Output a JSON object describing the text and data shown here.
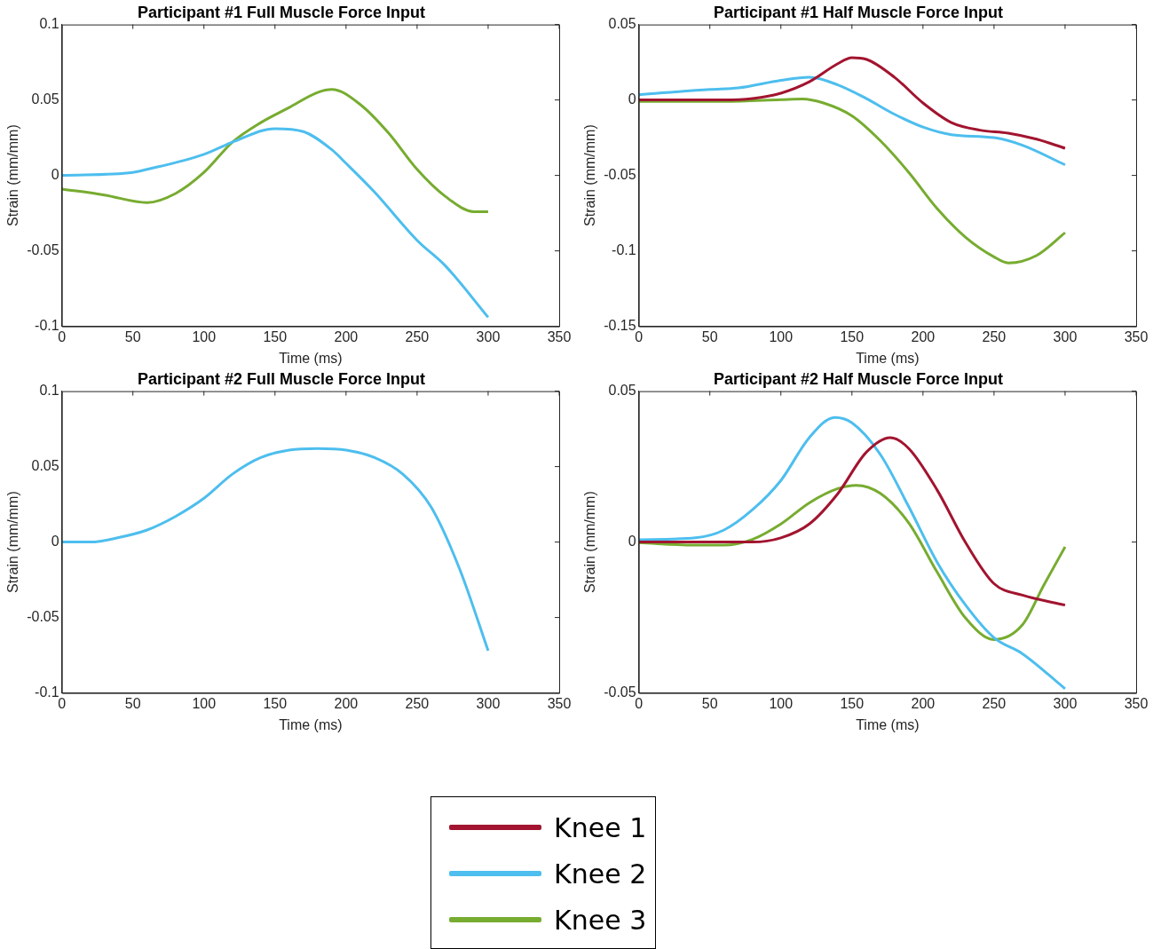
{
  "chart_data": [
    {
      "type": "line",
      "title": "Participant #1 Full Muscle Force Input",
      "xlabel": "Time (ms)",
      "ylabel": "Strain (mm/mm)",
      "xlim": [
        0,
        350
      ],
      "xticks": [
        0,
        50,
        100,
        150,
        200,
        250,
        300,
        350
      ],
      "ylim": [
        -0.1,
        0.1
      ],
      "yticks": [
        -0.1,
        -0.05,
        0,
        0.05,
        0.1
      ],
      "grid": false,
      "marker": "none",
      "line_style": "solid",
      "legend": "bottom",
      "series": [
        {
          "name": "Knee 2",
          "color": "#4dbeee",
          "x": [
            0,
            50,
            60,
            100,
            120,
            150,
            170,
            190,
            200,
            220,
            250,
            270,
            300
          ],
          "values": [
            0,
            0.002,
            0.004,
            0.014,
            0.022,
            0.031,
            0.029,
            0.017,
            0.008,
            -0.011,
            -0.043,
            -0.06,
            -0.094
          ]
        },
        {
          "name": "Knee 3",
          "color": "#77ac30",
          "x": [
            0,
            30,
            60,
            80,
            100,
            120,
            140,
            160,
            180,
            190,
            210,
            230,
            250,
            270,
            290,
            300
          ],
          "values": [
            -0.009,
            -0.013,
            -0.018,
            -0.012,
            0.002,
            0.022,
            0.035,
            0.045,
            0.055,
            0.057,
            0.047,
            0.028,
            0.004,
            -0.014,
            -0.024,
            -0.024
          ]
        }
      ]
    },
    {
      "type": "line",
      "title": "Participant #1 Half Muscle Force Input",
      "xlabel": "Time (ms)",
      "ylabel": "Strain (mm/mm)",
      "xlim": [
        0,
        350
      ],
      "xticks": [
        0,
        50,
        100,
        150,
        200,
        250,
        300,
        350
      ],
      "ylim": [
        -0.15,
        0.05
      ],
      "yticks": [
        -0.15,
        -0.1,
        -0.05,
        0,
        0.05
      ],
      "grid": false,
      "marker": "none",
      "line_style": "solid",
      "legend": "bottom",
      "series": [
        {
          "name": "Knee 1",
          "color": "#a2142f",
          "x": [
            0,
            60,
            80,
            100,
            120,
            140,
            150,
            160,
            180,
            200,
            220,
            240,
            260,
            280,
            300
          ],
          "values": [
            0,
            0,
            0.001,
            0.0045,
            0.012,
            0.024,
            0.028,
            0.027,
            0.015,
            -0.002,
            -0.015,
            -0.02,
            -0.022,
            -0.026,
            -0.032
          ]
        },
        {
          "name": "Knee 2",
          "color": "#4dbeee",
          "x": [
            0,
            50,
            70,
            100,
            120,
            140,
            160,
            180,
            200,
            220,
            250,
            270,
            300
          ],
          "values": [
            0.0035,
            0.007,
            0.008,
            0.013,
            0.015,
            0.01,
            0.001,
            -0.0095,
            -0.018,
            -0.023,
            -0.025,
            -0.03,
            -0.043
          ]
        },
        {
          "name": "Knee 3",
          "color": "#77ac30",
          "x": [
            0,
            60,
            100,
            115,
            130,
            150,
            170,
            190,
            210,
            230,
            250,
            260,
            280,
            300
          ],
          "values": [
            -0.001,
            -0.001,
            0.0002,
            0.0007,
            -0.002,
            -0.0105,
            -0.027,
            -0.048,
            -0.072,
            -0.091,
            -0.104,
            -0.108,
            -0.103,
            -0.088
          ]
        }
      ]
    },
    {
      "type": "line",
      "title": "Participant #2 Full Muscle Force Input",
      "xlabel": "Time (ms)",
      "ylabel": "Strain (mm/mm)",
      "xlim": [
        0,
        350
      ],
      "xticks": [
        0,
        50,
        100,
        150,
        200,
        250,
        300,
        350
      ],
      "ylim": [
        -0.1,
        0.1
      ],
      "yticks": [
        -0.1,
        -0.05,
        0,
        0.05,
        0.1
      ],
      "grid": false,
      "marker": "none",
      "line_style": "solid",
      "legend": "bottom",
      "series": [
        {
          "name": "Knee 2",
          "color": "#4dbeee",
          "x": [
            0,
            20,
            40,
            60,
            80,
            100,
            120,
            140,
            160,
            180,
            200,
            220,
            240,
            260,
            280,
            300
          ],
          "values": [
            0,
            0,
            0.003,
            0.008,
            0.017,
            0.029,
            0.045,
            0.056,
            0.061,
            0.062,
            0.061,
            0.056,
            0.045,
            0.023,
            -0.018,
            -0.072
          ]
        }
      ]
    },
    {
      "type": "line",
      "title": "Participant #2 Half Muscle Force Input",
      "xlabel": "Time (ms)",
      "ylabel": "Strain (mm/mm)",
      "xlim": [
        0,
        350
      ],
      "xticks": [
        0,
        50,
        100,
        150,
        200,
        250,
        300,
        350
      ],
      "ylim": [
        -0.05,
        0.05
      ],
      "yticks": [
        -0.05,
        0,
        0.05
      ],
      "grid": false,
      "marker": "none",
      "line_style": "solid",
      "legend": "bottom",
      "series": [
        {
          "name": "Knee 1",
          "color": "#a2142f",
          "x": [
            0,
            80,
            100,
            120,
            140,
            160,
            177,
            190,
            210,
            230,
            250,
            270,
            300
          ],
          "values": [
            0,
            0,
            0.0014,
            0.006,
            0.016,
            0.0297,
            0.0346,
            0.031,
            0.0172,
            -0.0002,
            -0.0138,
            -0.0176,
            -0.0209
          ]
        },
        {
          "name": "Knee 2",
          "color": "#4dbeee",
          "x": [
            0,
            40,
            60,
            80,
            100,
            120,
            138,
            150,
            170,
            190,
            210,
            230,
            250,
            270,
            300
          ],
          "values": [
            0.0008,
            0.0014,
            0.004,
            0.0107,
            0.0204,
            0.0346,
            0.0413,
            0.0395,
            0.029,
            0.0117,
            -0.0067,
            -0.0209,
            -0.0317,
            -0.037,
            -0.0486
          ]
        },
        {
          "name": "Knee 3",
          "color": "#77ac30",
          "x": [
            0,
            40,
            60,
            80,
            100,
            120,
            140,
            153,
            170,
            190,
            210,
            230,
            250,
            270,
            285,
            300
          ],
          "values": [
            -0.0002,
            -0.001,
            -0.001,
            0.0009,
            0.006,
            0.013,
            0.0177,
            0.0188,
            0.0161,
            0.0063,
            -0.01,
            -0.0252,
            -0.0323,
            -0.0274,
            -0.0143,
            -0.0016
          ]
        }
      ]
    }
  ]
}
